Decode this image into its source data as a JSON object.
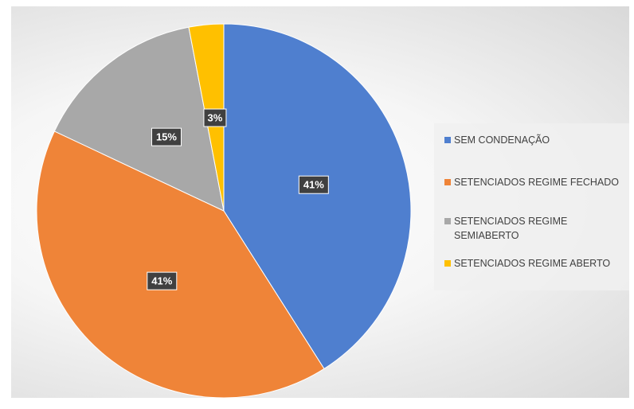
{
  "chart_data": {
    "type": "pie",
    "categories": [
      "SEM CONDENAÇÃO",
      "SETENCIADOS REGIME FECHADO",
      "SETENCIADOS REGIME SEMIABERTO",
      "SETENCIADOS REGIME ABERTO"
    ],
    "values": [
      41,
      41,
      15,
      3
    ],
    "value_labels": [
      "41%",
      "41%",
      "15%",
      "3%"
    ],
    "colors": [
      "#4f7fcf",
      "#ef8438",
      "#a8a8a8",
      "#ffc000"
    ],
    "legend": "right"
  }
}
